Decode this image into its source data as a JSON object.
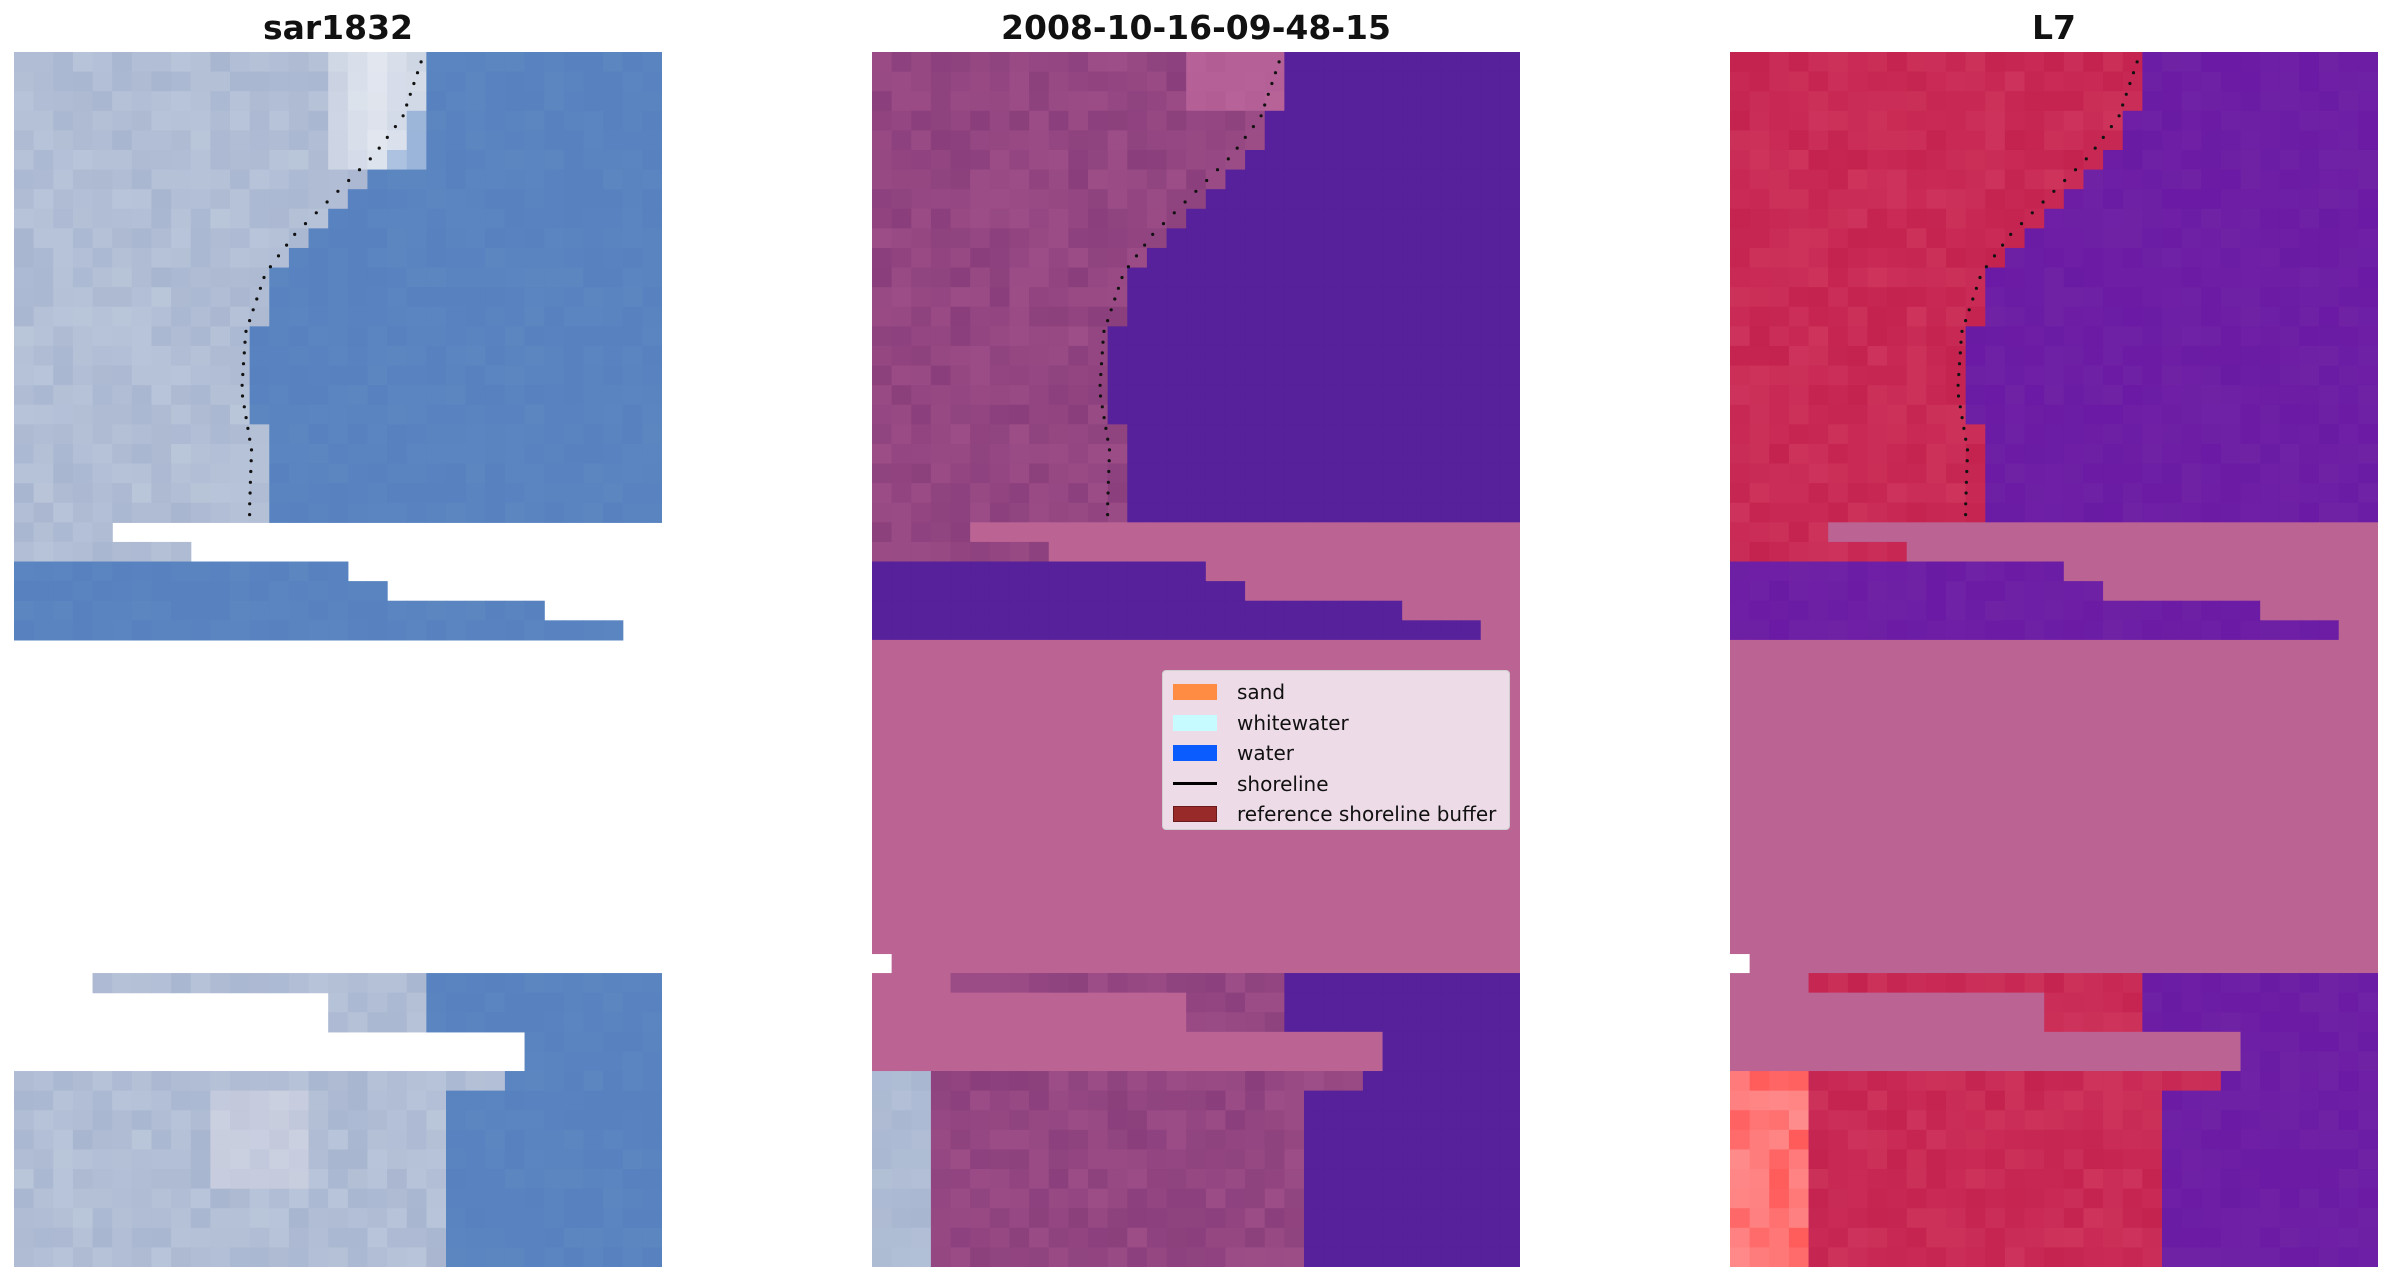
{
  "panels": [
    {
      "title": "sar1832"
    },
    {
      "title": "2008-10-16-09-48-15"
    },
    {
      "title": "L7"
    }
  ],
  "legend": {
    "items": [
      {
        "label": "sand",
        "color": "#ff8c42",
        "kind": "patch"
      },
      {
        "label": "whitewater",
        "color": "#c6fbff",
        "kind": "patch"
      },
      {
        "label": "water",
        "color": "#0a5cff",
        "kind": "patch"
      },
      {
        "label": "shoreline",
        "color": "#000000",
        "kind": "line"
      },
      {
        "label": "reference shoreline buffer",
        "color": "#992a2a",
        "kind": "patch"
      }
    ]
  },
  "colors": {
    "rgb_land": "#a9b6d0",
    "rgb_water": "#5b86c0",
    "class_land": "#8a3f7c",
    "class_water": "#56219a",
    "buffer": "#bb6494",
    "nir_land": "#c4224f",
    "nir_water": "#6a1aa4",
    "nir_bright": "#ff5a5a"
  }
}
